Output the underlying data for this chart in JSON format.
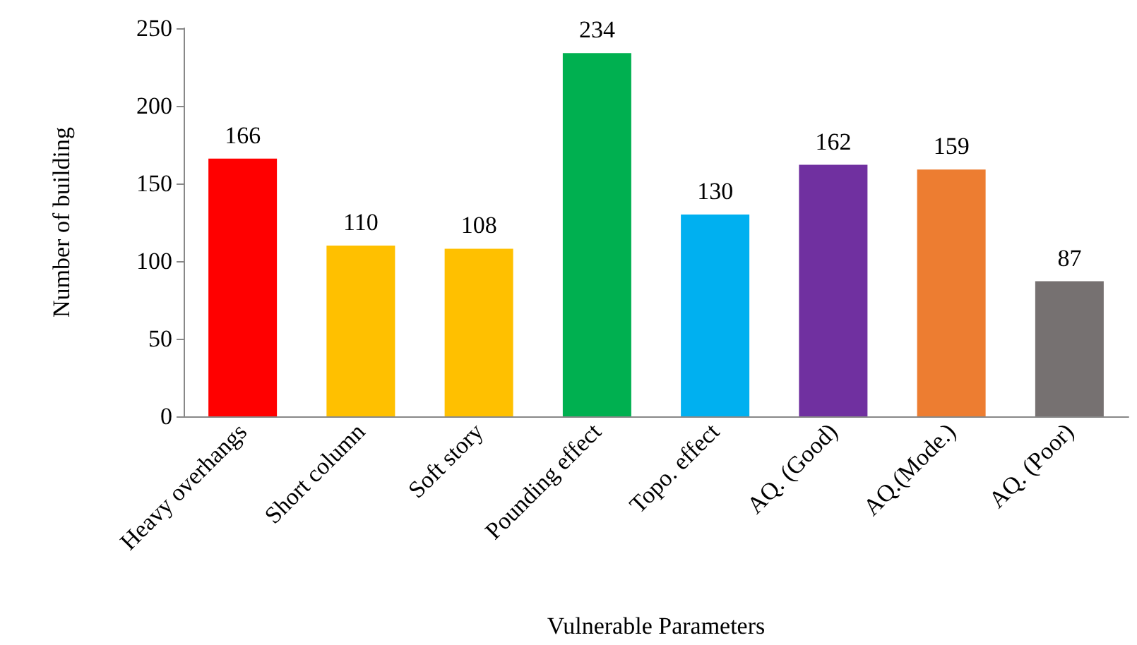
{
  "chart_data": {
    "type": "bar",
    "xlabel": "Vulnerable Parameters",
    "ylabel": "Number of building",
    "categories": [
      "Heavy overhangs",
      "Short column",
      "Soft story",
      "Pounding effect",
      "Topo. effect",
      "AQ. (Good)",
      "AQ.(Mode.)",
      "AQ. (Poor)"
    ],
    "values": [
      166,
      110,
      108,
      234,
      130,
      162,
      159,
      87
    ],
    "colors": [
      "#ff0000",
      "#ffc000",
      "#ffc000",
      "#00b050",
      "#00b0f0",
      "#7030a0",
      "#ed7d31",
      "#767171"
    ],
    "ylim": [
      0,
      250
    ],
    "yticks": [
      0,
      50,
      100,
      150,
      200,
      250
    ],
    "data_labels": true,
    "grid": false
  }
}
